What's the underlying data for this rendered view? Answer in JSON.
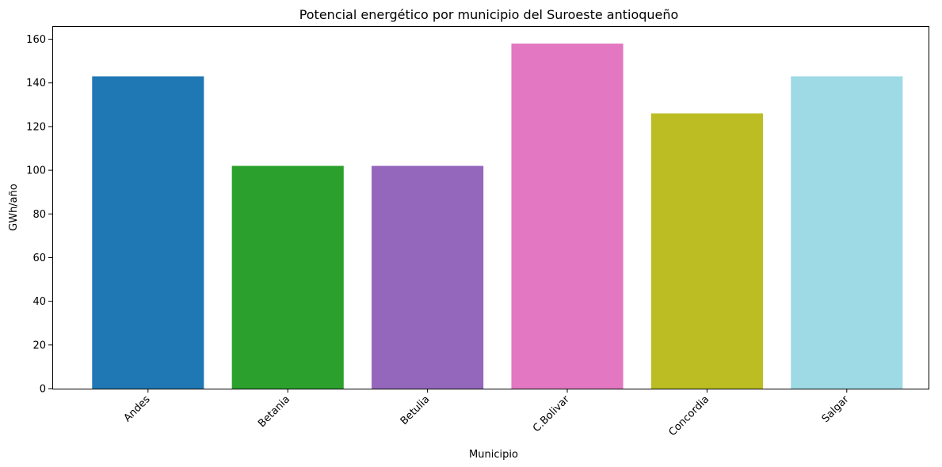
{
  "chart_data": {
    "type": "bar",
    "title": "Potencial energético por municipio del Suroeste antioqueño",
    "xlabel": "Municipio",
    "ylabel": "GWh/año",
    "categories": [
      "Andes",
      "Betania",
      "Betulia",
      "C.Bolivar",
      "Concordia",
      "Salgar"
    ],
    "values": [
      143,
      102,
      102,
      158,
      126,
      143
    ],
    "colors": [
      "#1f77b4",
      "#2ca02c",
      "#9467bd",
      "#e377c2",
      "#bcbd22",
      "#9edae5"
    ],
    "ylim": [
      0,
      166
    ],
    "yticks": [
      0,
      20,
      40,
      60,
      80,
      100,
      120,
      140,
      160
    ],
    "grid": false,
    "legend": false
  }
}
